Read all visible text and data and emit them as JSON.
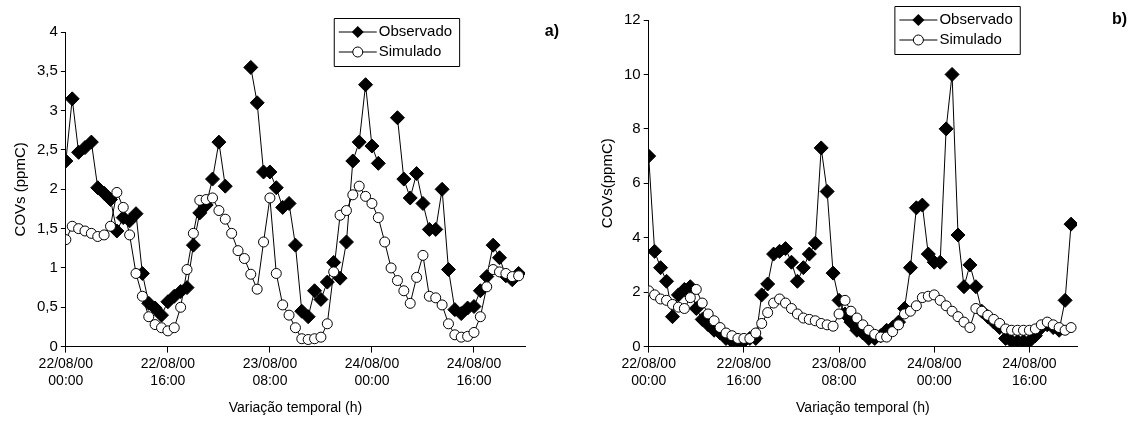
{
  "chart_data": [
    {
      "type": "line",
      "annotations": [
        "a)"
      ],
      "xlabel": "Variação temporal (h)",
      "ylabel": "COVs (ppmC)",
      "x": [
        "2000-08-22T00:00",
        "2000-08-22T01:00",
        "2000-08-22T02:00",
        "2000-08-22T03:00",
        "2000-08-22T04:00",
        "2000-08-22T05:00",
        "2000-08-22T06:00",
        "2000-08-22T07:00",
        "2000-08-22T08:00",
        "2000-08-22T09:00",
        "2000-08-22T10:00",
        "2000-08-22T11:00",
        "2000-08-22T12:00",
        "2000-08-22T13:00",
        "2000-08-22T14:00",
        "2000-08-22T15:00",
        "2000-08-22T16:00",
        "2000-08-22T17:00",
        "2000-08-22T18:00",
        "2000-08-22T19:00",
        "2000-08-22T20:00",
        "2000-08-22T21:00",
        "2000-08-22T22:00",
        "2000-08-22T23:00",
        "2000-08-23T00:00",
        "2000-08-23T01:00",
        "2000-08-23T02:00",
        "2000-08-23T03:00",
        "2000-08-23T04:00",
        "2000-08-23T05:00",
        "2000-08-23T06:00",
        "2000-08-23T07:00",
        "2000-08-23T08:00",
        "2000-08-23T09:00",
        "2000-08-23T10:00",
        "2000-08-23T11:00",
        "2000-08-23T12:00",
        "2000-08-23T13:00",
        "2000-08-23T14:00",
        "2000-08-23T15:00",
        "2000-08-23T16:00",
        "2000-08-23T17:00",
        "2000-08-23T18:00",
        "2000-08-23T19:00",
        "2000-08-23T20:00",
        "2000-08-23T21:00",
        "2000-08-23T22:00",
        "2000-08-23T23:00",
        "2000-08-24T00:00",
        "2000-08-24T01:00",
        "2000-08-24T02:00",
        "2000-08-24T03:00",
        "2000-08-24T04:00",
        "2000-08-24T05:00",
        "2000-08-24T06:00",
        "2000-08-24T07:00",
        "2000-08-24T08:00",
        "2000-08-24T09:00",
        "2000-08-24T10:00",
        "2000-08-24T11:00",
        "2000-08-24T12:00",
        "2000-08-24T13:00",
        "2000-08-24T14:00",
        "2000-08-24T15:00",
        "2000-08-24T16:00",
        "2000-08-24T17:00",
        "2000-08-24T18:00",
        "2000-08-24T19:00",
        "2000-08-24T20:00",
        "2000-08-24T21:00",
        "2000-08-24T22:00",
        "2000-08-24T23:00"
      ],
      "xlim": [
        "2000-08-22T00:00",
        "2000-08-25T00:00"
      ],
      "xticks": [
        {
          "value": "2000-08-22T00:00",
          "label": "22/08/00 00:00"
        },
        {
          "value": "2000-08-22T16:00",
          "label": "22/08/00 16:00"
        },
        {
          "value": "2000-08-23T08:00",
          "label": "23/08/00 08:00"
        },
        {
          "value": "2000-08-24T00:00",
          "label": "24/08/00 00:00"
        },
        {
          "value": "2000-08-24T16:00",
          "label": "24/08/00 16:00"
        }
      ],
      "ylim": [
        0,
        4
      ],
      "yticks": [
        0,
        {
          "value": 0.5,
          "label": "0,5"
        },
        1,
        {
          "value": 1.5,
          "label": "1,5"
        },
        2,
        {
          "value": 2.5,
          "label": "2,5"
        },
        3,
        {
          "value": 3.5,
          "label": "3,5"
        },
        4
      ],
      "grid": false,
      "legend": "top right",
      "line_style": "solid",
      "series": [
        {
          "name": "Observado",
          "color": "#000000",
          "marker": "diamond",
          "values": [
            2.36,
            3.15,
            2.47,
            2.53,
            2.6,
            2.02,
            1.95,
            1.87,
            1.47,
            1.64,
            1.6,
            1.69,
            0.93,
            0.55,
            0.49,
            0.4,
            0.57,
            0.64,
            0.7,
            0.75,
            1.29,
            1.7,
            1.8,
            2.13,
            2.6,
            2.04,
            null,
            null,
            null,
            3.55,
            3.1,
            2.22,
            2.22,
            2.02,
            1.77,
            1.82,
            1.29,
            0.45,
            0.38,
            0.71,
            0.6,
            0.82,
            1.07,
            0.87,
            1.33,
            2.36,
            2.6,
            3.33,
            2.55,
            2.33,
            null,
            null,
            2.91,
            2.13,
            1.89,
            2.2,
            1.82,
            1.49,
            1.49,
            2.0,
            0.98,
            0.47,
            0.42,
            0.49,
            0.51,
            0.71,
            0.89,
            1.29,
            1.13,
            0.9,
            0.85,
            0.93
          ]
        },
        {
          "name": "Simulado",
          "color": "#000000",
          "marker": "circle",
          "values": [
            1.36,
            1.53,
            1.5,
            1.47,
            1.44,
            1.4,
            1.42,
            1.53,
            1.96,
            1.77,
            1.42,
            0.93,
            0.64,
            0.38,
            0.28,
            0.24,
            0.2,
            0.24,
            0.5,
            0.98,
            1.44,
            1.86,
            1.87,
            1.89,
            1.73,
            1.62,
            1.44,
            1.22,
            1.12,
            0.92,
            0.73,
            1.33,
            1.89,
            0.93,
            0.53,
            0.4,
            0.24,
            0.1,
            0.09,
            0.1,
            0.12,
            0.29,
            0.95,
            1.67,
            1.73,
            1.93,
            2.04,
            1.91,
            1.82,
            1.64,
            1.33,
            1.0,
            0.84,
            0.71,
            0.55,
            0.88,
            1.16,
            0.64,
            0.62,
            0.53,
            0.29,
            0.15,
            0.12,
            0.13,
            0.18,
            0.38,
            0.76,
            0.98,
            0.95,
            0.93,
            0.89,
            0.9
          ]
        }
      ]
    },
    {
      "type": "line",
      "annotations": [
        "b)"
      ],
      "xlabel": "Variação temporal (h)",
      "ylabel": "COVs(ppmC)",
      "x": [
        "2000-08-22T00:00",
        "2000-08-22T01:00",
        "2000-08-22T02:00",
        "2000-08-22T03:00",
        "2000-08-22T04:00",
        "2000-08-22T05:00",
        "2000-08-22T06:00",
        "2000-08-22T07:00",
        "2000-08-22T08:00",
        "2000-08-22T09:00",
        "2000-08-22T10:00",
        "2000-08-22T11:00",
        "2000-08-22T12:00",
        "2000-08-22T13:00",
        "2000-08-22T14:00",
        "2000-08-22T15:00",
        "2000-08-22T16:00",
        "2000-08-22T17:00",
        "2000-08-22T18:00",
        "2000-08-22T19:00",
        "2000-08-22T20:00",
        "2000-08-22T21:00",
        "2000-08-22T22:00",
        "2000-08-22T23:00",
        "2000-08-23T00:00",
        "2000-08-23T01:00",
        "2000-08-23T02:00",
        "2000-08-23T03:00",
        "2000-08-23T04:00",
        "2000-08-23T05:00",
        "2000-08-23T06:00",
        "2000-08-23T07:00",
        "2000-08-23T08:00",
        "2000-08-23T09:00",
        "2000-08-23T10:00",
        "2000-08-23T11:00",
        "2000-08-23T12:00",
        "2000-08-23T13:00",
        "2000-08-23T14:00",
        "2000-08-23T15:00",
        "2000-08-23T16:00",
        "2000-08-23T17:00",
        "2000-08-23T18:00",
        "2000-08-23T19:00",
        "2000-08-23T20:00",
        "2000-08-23T21:00",
        "2000-08-23T22:00",
        "2000-08-23T23:00",
        "2000-08-24T00:00",
        "2000-08-24T01:00",
        "2000-08-24T02:00",
        "2000-08-24T03:00",
        "2000-08-24T04:00",
        "2000-08-24T05:00",
        "2000-08-24T06:00",
        "2000-08-24T07:00",
        "2000-08-24T08:00",
        "2000-08-24T09:00",
        "2000-08-24T10:00",
        "2000-08-24T11:00",
        "2000-08-24T12:00",
        "2000-08-24T13:00",
        "2000-08-24T14:00",
        "2000-08-24T15:00",
        "2000-08-24T16:00",
        "2000-08-24T17:00",
        "2000-08-24T18:00",
        "2000-08-24T19:00",
        "2000-08-24T20:00",
        "2000-08-24T21:00",
        "2000-08-24T22:00",
        "2000-08-24T23:00"
      ],
      "xlim": [
        "2000-08-22T00:00",
        "2000-08-25T00:00"
      ],
      "xticks": [
        {
          "value": "2000-08-22T00:00",
          "label": "22/08/00 00:00"
        },
        {
          "value": "2000-08-22T16:00",
          "label": "22/08/00 16:00"
        },
        {
          "value": "2000-08-23T08:00",
          "label": "23/08/00 08:00"
        },
        {
          "value": "2000-08-24T00:00",
          "label": "24/08/00 00:00"
        },
        {
          "value": "2000-08-24T16:00",
          "label": "24/08/00 16:00"
        }
      ],
      "ylim": [
        0,
        12
      ],
      "yticks": [
        0,
        2,
        4,
        6,
        8,
        10,
        12
      ],
      "grid": false,
      "legend": "top right",
      "line_style": "solid",
      "series": [
        {
          "name": "Observado",
          "color": "#000000",
          "marker": "diamond",
          "values": [
            7.0,
            3.5,
            2.9,
            2.4,
            1.1,
            1.9,
            2.1,
            2.2,
            1.4,
            1.0,
            0.8,
            0.6,
            0.5,
            0.3,
            0.2,
            0.2,
            0.2,
            0.3,
            0.3,
            1.9,
            2.3,
            3.4,
            3.5,
            3.6,
            3.1,
            2.4,
            2.9,
            3.4,
            3.8,
            7.3,
            5.7,
            2.7,
            1.7,
            1.2,
            0.9,
            0.6,
            0.5,
            0.3,
            0.3,
            0.4,
            0.6,
            0.7,
            0.9,
            1.4,
            2.9,
            5.1,
            5.2,
            3.4,
            3.1,
            3.1,
            8.0,
            10.0,
            4.1,
            2.2,
            3.0,
            2.2,
            1.3,
            1.1,
            0.9,
            0.7,
            0.3,
            0.2,
            0.2,
            0.2,
            0.2,
            0.4,
            0.7,
            0.8,
            0.7,
            0.6,
            1.7,
            4.5
          ]
        },
        {
          "name": "Simulado",
          "color": "#000000",
          "marker": "circle",
          "values": [
            2.05,
            1.9,
            1.75,
            1.7,
            1.55,
            1.45,
            1.4,
            1.8,
            2.1,
            1.6,
            1.2,
            0.95,
            0.7,
            0.5,
            0.4,
            0.3,
            0.3,
            0.3,
            0.5,
            0.85,
            1.25,
            1.6,
            1.75,
            1.6,
            1.4,
            1.2,
            1.05,
            1.0,
            0.95,
            0.85,
            0.8,
            0.75,
            1.2,
            1.7,
            1.3,
            1.05,
            0.8,
            0.6,
            0.45,
            0.35,
            0.35,
            0.55,
            0.8,
            1.2,
            1.3,
            1.5,
            1.8,
            1.85,
            1.9,
            1.7,
            1.5,
            1.3,
            1.1,
            0.9,
            0.7,
            1.4,
            1.3,
            1.15,
            1.0,
            0.85,
            0.65,
            0.6,
            0.6,
            0.6,
            0.6,
            0.65,
            0.8,
            0.9,
            0.8,
            0.7,
            0.6,
            0.7
          ]
        }
      ]
    }
  ]
}
